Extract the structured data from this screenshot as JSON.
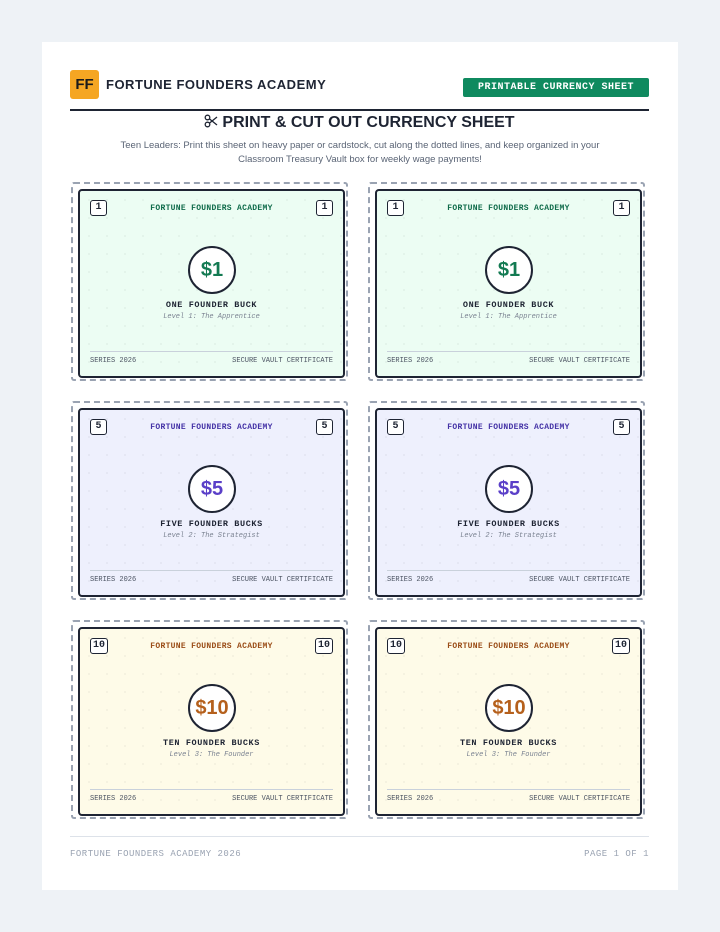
{
  "header": {
    "logo": "FF",
    "title": "FORTUNE FOUNDERS ACADEMY",
    "badge": "PRINTABLE CURRENCY SHEET"
  },
  "intro": {
    "title": "PRINT & CUT OUT CURRENCY SHEET",
    "text": "Teen Leaders: Print this sheet on heavy paper or cardstock, cut along the dotted lines, and keep organized in your Classroom Treasury Vault box for weekly wage payments!"
  },
  "bills": [
    {
      "corner": "1",
      "academy": "FORTUNE FOUNDERS ACADEMY",
      "amount": "$1",
      "name": "ONE FOUNDER BUCK",
      "level": "Level 1: The Apprentice",
      "series": "SERIES 2026",
      "certificate": "SECURE VAULT CERTIFICATE"
    },
    {
      "corner": "1",
      "academy": "FORTUNE FOUNDERS ACADEMY",
      "amount": "$1",
      "name": "ONE FOUNDER BUCK",
      "level": "Level 1: The Apprentice",
      "series": "SERIES 2026",
      "certificate": "SECURE VAULT CERTIFICATE"
    },
    {
      "corner": "5",
      "academy": "FORTUNE FOUNDERS ACADEMY",
      "amount": "$5",
      "name": "FIVE FOUNDER BUCKS",
      "level": "Level 2: The Strategist",
      "series": "SERIES 2026",
      "certificate": "SECURE VAULT CERTIFICATE"
    },
    {
      "corner": "5",
      "academy": "FORTUNE FOUNDERS ACADEMY",
      "amount": "$5",
      "name": "FIVE FOUNDER BUCKS",
      "level": "Level 2: The Strategist",
      "series": "SERIES 2026",
      "certificate": "SECURE VAULT CERTIFICATE"
    },
    {
      "corner": "10",
      "academy": "FORTUNE FOUNDERS ACADEMY",
      "amount": "$10",
      "name": "TEN FOUNDER BUCKS",
      "level": "Level 3: The Founder",
      "series": "SERIES 2026",
      "certificate": "SECURE VAULT CERTIFICATE"
    },
    {
      "corner": "10",
      "academy": "FORTUNE FOUNDERS ACADEMY",
      "amount": "$10",
      "name": "TEN FOUNDER BUCKS",
      "level": "Level 3: The Founder",
      "series": "SERIES 2026",
      "certificate": "SECURE VAULT CERTIFICATE"
    }
  ],
  "footer": {
    "left": "FORTUNE FOUNDERS ACADEMY 2026",
    "right": "PAGE 1 OF 1"
  }
}
